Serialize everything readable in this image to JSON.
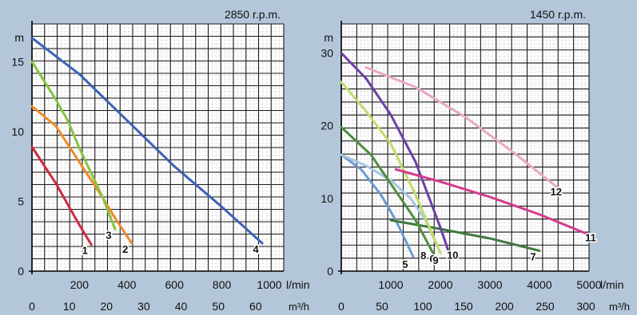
{
  "chart_data": [
    {
      "type": "line",
      "title": "2850 r.p.m.",
      "ylabel": "m",
      "xlabel": "l/min",
      "xlabel2": "m³/h",
      "xlim": [
        0,
        1000
      ],
      "ylim": [
        0,
        17
      ],
      "yticks": [
        0,
        5,
        10,
        15
      ],
      "xticks": [
        200,
        400,
        600,
        800,
        1000
      ],
      "xticks2": [
        0,
        10,
        20,
        30,
        40,
        50,
        60
      ],
      "grid": true,
      "series": [
        {
          "name": "1",
          "color": "#d02b3e",
          "x": [
            0,
            50,
            100,
            150,
            200,
            250
          ],
          "y": [
            8.9,
            7.6,
            6.3,
            4.8,
            3.3,
            1.9
          ]
        },
        {
          "name": "2",
          "color": "#f08a2a",
          "x": [
            0,
            100,
            200,
            300,
            350,
            420
          ],
          "y": [
            11.8,
            10.4,
            7.8,
            5.2,
            3.8,
            2.0
          ]
        },
        {
          "name": "3",
          "color": "#85c540",
          "x": [
            0,
            100,
            150,
            200,
            300,
            350
          ],
          "y": [
            15.0,
            12.3,
            10.8,
            8.8,
            5.2,
            3.0
          ]
        },
        {
          "name": "4",
          "color": "#3d62b5",
          "x": [
            0,
            200,
            400,
            600,
            800,
            970
          ],
          "y": [
            16.7,
            14.1,
            10.8,
            7.5,
            4.6,
            2.0
          ]
        }
      ]
    },
    {
      "type": "line",
      "title": "1450 r.p.m.",
      "ylabel": "m",
      "xlabel": "l/min",
      "xlabel2": "m³/h",
      "xlim": [
        0,
        5000
      ],
      "ylim": [
        0,
        32
      ],
      "yticks": [
        0,
        10,
        20,
        30
      ],
      "xticks": [
        1000,
        2000,
        3000,
        4000,
        5000
      ],
      "xticks2": [
        0,
        50,
        100,
        150,
        200,
        250,
        300
      ],
      "grid": true,
      "series": [
        {
          "name": "5",
          "color": "#6c9bd1",
          "x": [
            0,
            400,
            800,
            1100,
            1450
          ],
          "y": [
            16.0,
            14.0,
            10.5,
            7.0,
            2.0
          ]
        },
        {
          "name": "6",
          "color": "#a7c6e3",
          "x": [
            0,
            500,
            1000,
            1400,
            1700,
            2000
          ],
          "y": [
            16.0,
            14.5,
            12.5,
            10.0,
            7.0,
            2.5
          ]
        },
        {
          "name": "7",
          "color": "#3f7a3f",
          "x": [
            1000,
            2000,
            3000,
            4000
          ],
          "y": [
            7.0,
            5.8,
            4.5,
            2.8
          ]
        },
        {
          "name": "8",
          "color": "#4f8f3d",
          "x": [
            0,
            600,
            1100,
            1500,
            1850
          ],
          "y": [
            19.8,
            16.0,
            11.0,
            7.0,
            2.5
          ]
        },
        {
          "name": "9",
          "color": "#c2dc6a",
          "x": [
            0,
            500,
            1000,
            1500,
            2000
          ],
          "y": [
            26.0,
            22.0,
            17.5,
            10.5,
            2.5
          ]
        },
        {
          "name": "10",
          "color": "#6e3fa6",
          "x": [
            0,
            500,
            1000,
            1500,
            2000,
            2150
          ],
          "y": [
            30.0,
            26.5,
            21.5,
            15.0,
            6.0,
            3.0
          ]
        },
        {
          "name": "11",
          "color": "#d63a8c",
          "x": [
            1100,
            2000,
            3000,
            4000,
            5000
          ],
          "y": [
            14.0,
            12.3,
            10.2,
            7.8,
            5.0
          ]
        },
        {
          "name": "12",
          "color": "#e8a8c6",
          "x": [
            500,
            1500,
            2500,
            3500,
            4400
          ],
          "y": [
            28.0,
            25.3,
            21.2,
            16.2,
            11.3
          ]
        }
      ]
    }
  ]
}
